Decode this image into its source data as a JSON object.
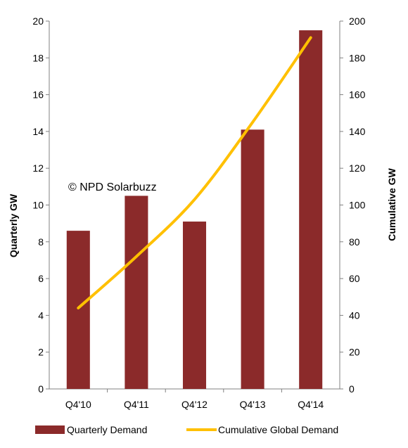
{
  "chart_data": {
    "type": "bar",
    "categories": [
      "Q4'10",
      "Q4'11",
      "Q4'12",
      "Q4'13",
      "Q4'14"
    ],
    "series": [
      {
        "name": "Quarterly Demand",
        "type": "bar",
        "axis": "left",
        "values": [
          8.6,
          10.5,
          9.1,
          14.1,
          19.5
        ],
        "color": "#8b2a2a"
      },
      {
        "name": "Cumulative Global Demand",
        "type": "line",
        "axis": "right",
        "values": [
          44,
          72,
          103,
          145,
          191
        ],
        "color": "#ffc000"
      }
    ],
    "ylabel": "Quarterly GW",
    "y2label": "Cumulative GW",
    "ylim": [
      0,
      20
    ],
    "y2lim": [
      0,
      200
    ],
    "yticks": [
      0,
      2,
      4,
      6,
      8,
      10,
      12,
      14,
      16,
      18,
      20
    ],
    "y2ticks": [
      0,
      20,
      40,
      60,
      80,
      100,
      120,
      140,
      160,
      180,
      200
    ],
    "grid": false,
    "legend_position": "bottom",
    "annotation": "© NPD  Solarbuzz"
  }
}
